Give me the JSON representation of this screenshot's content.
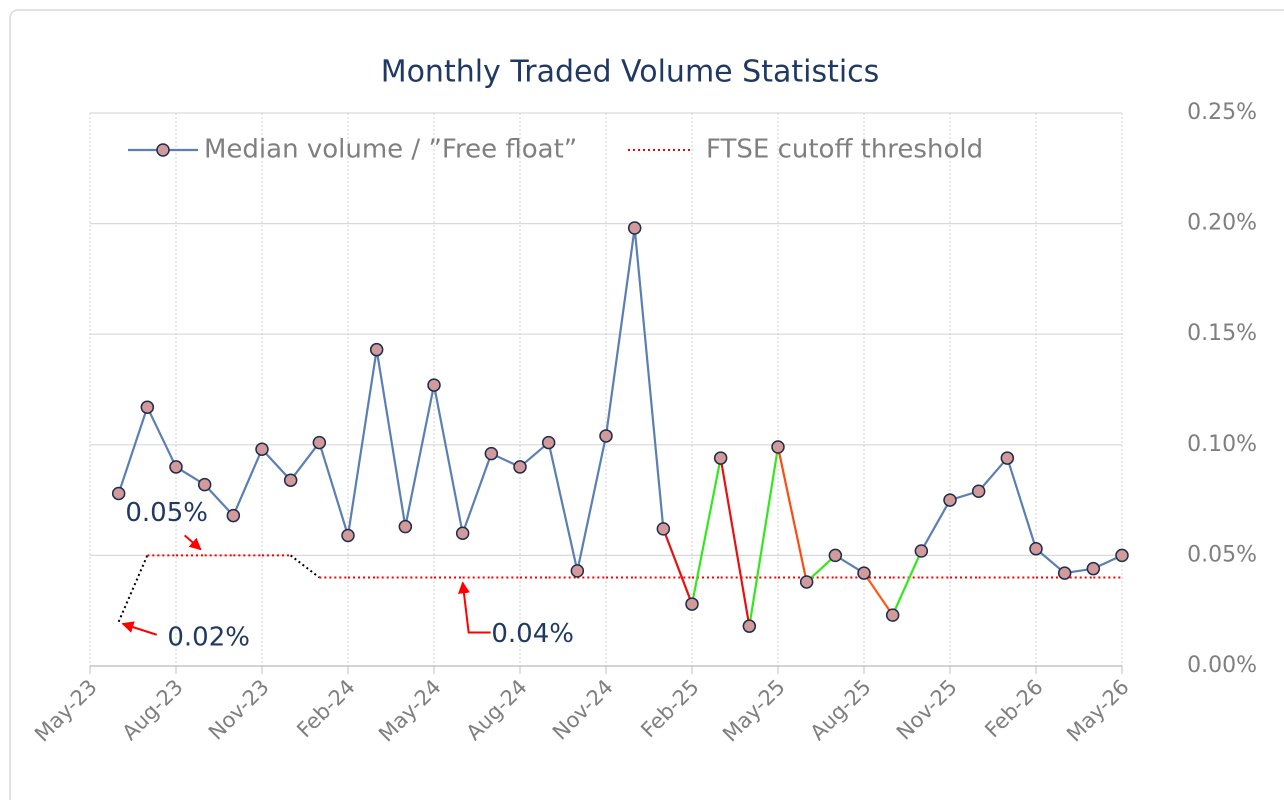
{
  "chart_data": {
    "type": "line",
    "title": "Monthly Traded Volume Statistics",
    "x": [
      "2023-06",
      "2023-07",
      "2023-08",
      "2023-09",
      "2023-10",
      "2023-11",
      "2023-12",
      "2024-01",
      "2024-02",
      "2024-03",
      "2024-04",
      "2024-05",
      "2024-06",
      "2024-07",
      "2024-08",
      "2024-09",
      "2024-10",
      "2024-11",
      "2024-12",
      "2025-01",
      "2025-02",
      "2025-03",
      "2025-04",
      "2025-05",
      "2025-06",
      "2025-07",
      "2025-08",
      "2025-09",
      "2025-10",
      "2025-11",
      "2025-12",
      "2026-01",
      "2026-02",
      "2026-03",
      "2026-04",
      "2026-05"
    ],
    "series": [
      {
        "name": "Median volume / ”Free float”",
        "color": "#5a7fb2",
        "marker_fill": "#d39a9b",
        "marker_stroke": "#1f2d4d",
        "values": [
          0.078,
          0.117,
          0.09,
          0.082,
          0.068,
          0.098,
          0.084,
          0.101,
          0.059,
          0.143,
          0.063,
          0.127,
          0.06,
          0.096,
          0.09,
          0.101,
          0.043,
          0.104,
          0.198,
          0.062,
          0.028,
          0.094,
          0.018,
          0.099,
          0.038,
          0.05,
          0.042,
          0.023,
          0.052,
          0.075,
          0.079,
          0.094,
          0.053,
          0.042,
          0.044,
          0.05
        ],
        "segment_colors": [
          "#5a7fb2",
          "#5a7fb2",
          "#5a7fb2",
          "#5a7fb2",
          "#5a7fb2",
          "#5a7fb2",
          "#5a7fb2",
          "#5a7fb2",
          "#5a7fb2",
          "#5a7fb2",
          "#5a7fb2",
          "#5a7fb2",
          "#5a7fb2",
          "#5a7fb2",
          "#5a7fb2",
          "#5a7fb2",
          "#5a7fb2",
          "#5a7fb2",
          "#5a7fb2",
          "#e81010",
          "#33e81a",
          "#e81010",
          "#33e81a",
          "#ff4a10",
          "#33e81a",
          "#5a7fb2",
          "#ff5a14",
          "#33e81a",
          "#5a7fb2",
          "#5a7fb2",
          "#5a7fb2",
          "#5a7fb2",
          "#5a7fb2",
          "#5a7fb2",
          "#5a7fb2"
        ]
      },
      {
        "name": "FTSE cutoff threshold",
        "color": "#ff0000",
        "transition_color": "#000000",
        "dotted": true,
        "values": [
          0.02,
          0.05,
          0.05,
          0.05,
          0.05,
          0.05,
          0.05,
          0.04,
          0.04,
          0.04,
          0.04,
          0.04,
          0.04,
          0.04,
          0.04,
          0.04,
          0.04,
          0.04,
          0.04,
          0.04,
          0.04,
          0.04,
          0.04,
          0.04,
          0.04,
          0.04,
          0.04,
          0.04,
          0.04,
          0.04,
          0.04,
          0.04,
          0.04,
          0.04,
          0.04,
          0.04
        ]
      }
    ],
    "annotations": [
      {
        "text": "0.05%",
        "point": 3
      },
      {
        "text": "0.02%",
        "point": 0
      },
      {
        "text": "0.04%",
        "point": 12
      }
    ],
    "xlim": [
      "2023-05",
      "2026-05"
    ],
    "xticks": [
      {
        "value": "2023-05",
        "label": "May-23"
      },
      {
        "value": "2023-08",
        "label": "Aug-23"
      },
      {
        "value": "2023-11",
        "label": "Nov-23"
      },
      {
        "value": "2024-02",
        "label": "Feb-24"
      },
      {
        "value": "2024-05",
        "label": "May-24"
      },
      {
        "value": "2024-08",
        "label": "Aug-24"
      },
      {
        "value": "2024-11",
        "label": "Nov-24"
      },
      {
        "value": "2025-02",
        "label": "Feb-25"
      },
      {
        "value": "2025-05",
        "label": "May-25"
      },
      {
        "value": "2025-08",
        "label": "Aug-25"
      },
      {
        "value": "2025-11",
        "label": "Nov-25"
      },
      {
        "value": "2026-02",
        "label": "Feb-26"
      },
      {
        "value": "2026-05",
        "label": "May-26"
      }
    ],
    "ylim": [
      0,
      0.25
    ],
    "yticks": [
      {
        "value": 0,
        "label": "0.00%"
      },
      {
        "value": 0.05,
        "label": "0.05%"
      },
      {
        "value": 0.1,
        "label": "0.10%"
      },
      {
        "value": 0.15,
        "label": "0.15%"
      },
      {
        "value": 0.2,
        "label": "0.20%"
      },
      {
        "value": 0.25,
        "label": "0.25%"
      }
    ],
    "y_axis_side": "right",
    "grid": true,
    "legend": "top-left"
  }
}
